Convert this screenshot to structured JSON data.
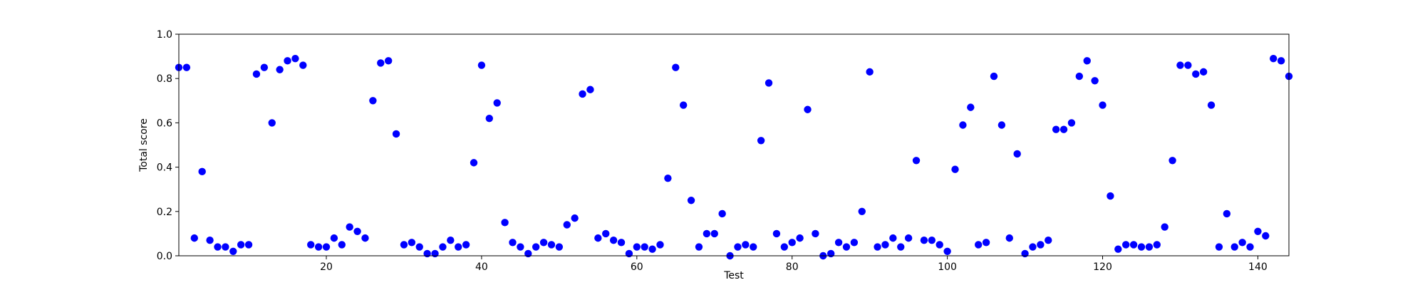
{
  "chart_data": {
    "type": "scatter",
    "title": "",
    "xlabel": "Test",
    "ylabel": "Total score",
    "xlim": [
      1,
      144
    ],
    "ylim": [
      0.0,
      1.0
    ],
    "x_ticks": [
      20,
      40,
      60,
      80,
      100,
      120,
      140
    ],
    "x_tick_labels": [
      "20",
      "40",
      "60",
      "80",
      "100",
      "120",
      "140"
    ],
    "y_ticks": [
      0.0,
      0.2,
      0.4,
      0.6,
      0.8,
      1.0
    ],
    "y_tick_labels": [
      "0.0",
      "0.2",
      "0.4",
      "0.6",
      "0.8",
      "1.0"
    ],
    "grid": false,
    "legend": "none",
    "marker_color": "#0000ff",
    "x": [
      1,
      2,
      3,
      4,
      5,
      6,
      7,
      8,
      9,
      10,
      11,
      12,
      13,
      14,
      15,
      16,
      17,
      18,
      19,
      20,
      21,
      22,
      23,
      24,
      25,
      26,
      27,
      28,
      29,
      30,
      31,
      32,
      33,
      34,
      35,
      36,
      37,
      38,
      39,
      40,
      41,
      42,
      43,
      44,
      45,
      46,
      47,
      48,
      49,
      50,
      51,
      52,
      53,
      54,
      55,
      56,
      57,
      58,
      59,
      60,
      61,
      62,
      63,
      64,
      65,
      66,
      67,
      68,
      69,
      70,
      71,
      72,
      73,
      74,
      75,
      76,
      77,
      78,
      79,
      80,
      81,
      82,
      83,
      84,
      85,
      86,
      87,
      88,
      89,
      90,
      91,
      92,
      93,
      94,
      95,
      96,
      97,
      98,
      99,
      100,
      101,
      102,
      103,
      104,
      105,
      106,
      107,
      108,
      109,
      110,
      111,
      112,
      113,
      114,
      115,
      116,
      117,
      118,
      119,
      120,
      121,
      122,
      123,
      124,
      125,
      126,
      127,
      128,
      129,
      130,
      131,
      132,
      133,
      134,
      135,
      136,
      137,
      138,
      139,
      140,
      141,
      142,
      143,
      144
    ],
    "y": [
      0.85,
      0.85,
      0.08,
      0.38,
      0.07,
      0.04,
      0.04,
      0.02,
      0.05,
      0.05,
      0.82,
      0.85,
      0.6,
      0.84,
      0.88,
      0.89,
      0.86,
      0.05,
      0.04,
      0.04,
      0.08,
      0.05,
      0.13,
      0.11,
      0.08,
      0.7,
      0.87,
      0.88,
      0.55,
      0.05,
      0.06,
      0.04,
      0.01,
      0.01,
      0.04,
      0.07,
      0.04,
      0.05,
      0.42,
      0.86,
      0.62,
      0.69,
      0.15,
      0.06,
      0.04,
      0.01,
      0.04,
      0.06,
      0.05,
      0.04,
      0.14,
      0.17,
      0.73,
      0.75,
      0.08,
      0.1,
      0.07,
      0.06,
      0.01,
      0.04,
      0.04,
      0.03,
      0.05,
      0.35,
      0.85,
      0.68,
      0.25,
      0.04,
      0.1,
      0.1,
      0.19,
      0.0,
      0.04,
      0.05,
      0.04,
      0.52,
      0.78,
      0.1,
      0.04,
      0.06,
      0.08,
      0.66,
      0.1,
      0.0,
      0.01,
      0.06,
      0.04,
      0.06,
      0.2,
      0.83,
      0.04,
      0.05,
      0.08,
      0.04,
      0.08,
      0.43,
      0.07,
      0.07,
      0.05,
      0.02,
      0.39,
      0.59,
      0.67,
      0.05,
      0.06,
      0.81,
      0.59,
      0.08,
      0.46,
      0.01,
      0.04,
      0.05,
      0.07,
      0.57,
      0.57,
      0.6,
      0.81,
      0.88,
      0.79,
      0.68,
      0.27,
      0.03,
      0.05,
      0.05,
      0.04,
      0.04,
      0.05,
      0.13,
      0.43,
      0.86,
      0.86,
      0.82,
      0.83,
      0.68,
      0.04,
      0.19,
      0.04,
      0.06,
      0.04,
      0.11,
      0.09,
      0.89,
      0.88,
      0.81
    ]
  }
}
